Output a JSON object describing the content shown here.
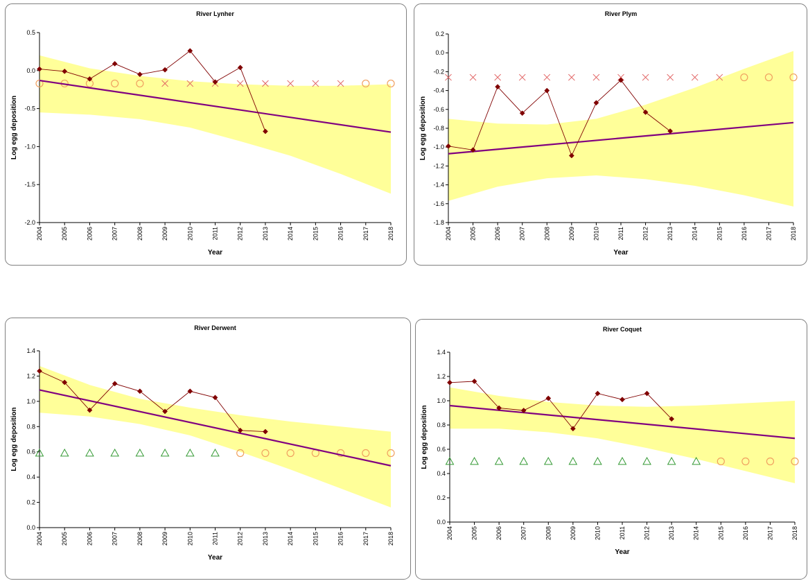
{
  "chart_data": [
    {
      "type": "line",
      "title": "River Lynher",
      "xlabel": "Year",
      "ylabel": "Log egg deposition",
      "x": [
        2004,
        2005,
        2006,
        2007,
        2008,
        2009,
        2010,
        2011,
        2012,
        2013,
        2014,
        2015,
        2016,
        2017,
        2018
      ],
      "xlim": [
        2004,
        2018
      ],
      "ylim": [
        -2.0,
        0.5
      ],
      "yticks": [
        -2.0,
        -1.5,
        -1.0,
        -0.5,
        0.0,
        0.5
      ],
      "ytick_labels": [
        "-2.0",
        "-1.5",
        "-1.0",
        "-0.5",
        "0.0",
        "0.5"
      ],
      "colors": {
        "observed": "#800000",
        "trend": "#800080",
        "band": "#ffff99",
        "x_marker": "#e06060",
        "circle_marker": "#f0a060",
        "triangle_marker": "#339933"
      },
      "observed": {
        "x": [
          2004,
          2005,
          2006,
          2007,
          2008,
          2009,
          2010,
          2011,
          2012,
          2013
        ],
        "y": [
          0.02,
          -0.01,
          -0.11,
          0.09,
          -0.05,
          0.01,
          0.26,
          -0.15,
          0.04,
          -0.8
        ]
      },
      "trend": {
        "x": [
          2004,
          2018
        ],
        "y": [
          -0.13,
          -0.81
        ]
      },
      "confidence_band": {
        "x": [
          2004,
          2006,
          2008,
          2010,
          2012,
          2014,
          2016,
          2018
        ],
        "upper": [
          0.2,
          0.03,
          -0.07,
          -0.14,
          -0.18,
          -0.2,
          -0.2,
          -0.18
        ],
        "lower": [
          -0.55,
          -0.58,
          -0.64,
          -0.75,
          -0.93,
          -1.12,
          -1.36,
          -1.62
        ]
      },
      "marker_series": [
        {
          "marker": "x",
          "x": [
            2009,
            2010,
            2011,
            2012,
            2013,
            2014,
            2015,
            2016
          ],
          "y": [
            -0.17,
            -0.17,
            -0.17,
            -0.17,
            -0.17,
            -0.17,
            -0.17,
            -0.17
          ]
        },
        {
          "marker": "circle",
          "x": [
            2004,
            2005,
            2006,
            2007,
            2008,
            2017,
            2018
          ],
          "y": [
            -0.17,
            -0.17,
            -0.17,
            -0.17,
            -0.17,
            -0.17,
            -0.17
          ]
        }
      ]
    },
    {
      "type": "line",
      "title": "River Plym",
      "xlabel": "Year",
      "ylabel": "Log egg deposition",
      "x": [
        2004,
        2005,
        2006,
        2007,
        2008,
        2009,
        2010,
        2011,
        2012,
        2013,
        2014,
        2015,
        2016,
        2017,
        2018
      ],
      "xlim": [
        2004,
        2018
      ],
      "ylim": [
        -1.8,
        0.2
      ],
      "yticks": [
        -1.8,
        -1.6,
        -1.4,
        -1.2,
        -1.0,
        -0.8,
        -0.6,
        -0.4,
        -0.2,
        0.0,
        0.2
      ],
      "ytick_labels": [
        "-1.8",
        "-1.6",
        "-1.4",
        "-1.2",
        "-1.0",
        "-0.8",
        "-0.6",
        "-0.4",
        "-0.2",
        "0.0",
        "0.2"
      ],
      "colors": {
        "observed": "#800000",
        "trend": "#800080",
        "band": "#ffff99",
        "x_marker": "#e06060",
        "circle_marker": "#f0a060",
        "triangle_marker": "#339933"
      },
      "observed": {
        "x": [
          2004,
          2005,
          2006,
          2007,
          2008,
          2009,
          2010,
          2011,
          2012,
          2013
        ],
        "y": [
          -0.99,
          -1.03,
          -0.36,
          -0.64,
          -0.4,
          -1.09,
          -0.53,
          -0.29,
          -0.63,
          -0.83
        ]
      },
      "trend": {
        "x": [
          2004,
          2018
        ],
        "y": [
          -1.07,
          -0.74
        ]
      },
      "confidence_band": {
        "x": [
          2004,
          2006,
          2008,
          2010,
          2012,
          2014,
          2016,
          2018
        ],
        "upper": [
          -0.7,
          -0.75,
          -0.76,
          -0.7,
          -0.55,
          -0.37,
          -0.17,
          0.02
        ],
        "lower": [
          -1.57,
          -1.42,
          -1.33,
          -1.3,
          -1.34,
          -1.41,
          -1.51,
          -1.63
        ]
      },
      "marker_series": [
        {
          "marker": "x",
          "x": [
            2004,
            2005,
            2006,
            2007,
            2008,
            2009,
            2010,
            2011,
            2012,
            2013,
            2014,
            2015
          ],
          "y": [
            -0.26,
            -0.26,
            -0.26,
            -0.26,
            -0.26,
            -0.26,
            -0.26,
            -0.26,
            -0.26,
            -0.26,
            -0.26,
            -0.26
          ]
        },
        {
          "marker": "circle",
          "x": [
            2016,
            2017,
            2018
          ],
          "y": [
            -0.26,
            -0.26,
            -0.26
          ]
        }
      ]
    },
    {
      "type": "line",
      "title": "River Derwent",
      "xlabel": "Year",
      "ylabel": "Log egg deposition",
      "x": [
        2004,
        2005,
        2006,
        2007,
        2008,
        2009,
        2010,
        2011,
        2012,
        2013,
        2014,
        2015,
        2016,
        2017,
        2018
      ],
      "xlim": [
        2004,
        2018
      ],
      "ylim": [
        0.0,
        1.4
      ],
      "yticks": [
        0.0,
        0.2,
        0.4,
        0.6,
        0.8,
        1.0,
        1.2,
        1.4
      ],
      "ytick_labels": [
        "0.0",
        "0.2",
        "0.4",
        "0.6",
        "0.8",
        "1.0",
        "1.2",
        "1.4"
      ],
      "colors": {
        "observed": "#800000",
        "trend": "#800080",
        "band": "#ffff99",
        "x_marker": "#e06060",
        "circle_marker": "#f0a060",
        "triangle_marker": "#339933"
      },
      "observed": {
        "x": [
          2004,
          2005,
          2006,
          2007,
          2008,
          2009,
          2010,
          2011,
          2012,
          2013
        ],
        "y": [
          1.24,
          1.15,
          0.93,
          1.14,
          1.08,
          0.92,
          1.08,
          1.03,
          0.77,
          0.76
        ]
      },
      "trend": {
        "x": [
          2004,
          2018
        ],
        "y": [
          1.09,
          0.49
        ]
      },
      "confidence_band": {
        "x": [
          2004,
          2006,
          2008,
          2010,
          2012,
          2014,
          2016,
          2018
        ],
        "upper": [
          1.28,
          1.13,
          1.02,
          0.95,
          0.89,
          0.84,
          0.8,
          0.76
        ],
        "lower": [
          0.91,
          0.88,
          0.82,
          0.73,
          0.6,
          0.46,
          0.31,
          0.16
        ]
      },
      "marker_series": [
        {
          "marker": "triangle",
          "x": [
            2004,
            2005,
            2006,
            2007,
            2008,
            2009,
            2010,
            2011
          ],
          "y": [
            0.59,
            0.59,
            0.59,
            0.59,
            0.59,
            0.59,
            0.59,
            0.59
          ]
        },
        {
          "marker": "circle",
          "x": [
            2012,
            2013,
            2014,
            2015,
            2016,
            2017,
            2018
          ],
          "y": [
            0.59,
            0.59,
            0.59,
            0.59,
            0.59,
            0.59,
            0.59
          ]
        }
      ]
    },
    {
      "type": "line",
      "title": "River Coquet",
      "xlabel": "Year",
      "ylabel": "Log egg deposition",
      "x": [
        2004,
        2005,
        2006,
        2007,
        2008,
        2009,
        2010,
        2011,
        2012,
        2013,
        2014,
        2015,
        2016,
        2017,
        2018
      ],
      "xlim": [
        2004,
        2018
      ],
      "ylim": [
        0.0,
        1.4
      ],
      "yticks": [
        0.0,
        0.2,
        0.4,
        0.6,
        0.8,
        1.0,
        1.2,
        1.4
      ],
      "ytick_labels": [
        "0.0",
        "0.2",
        "0.4",
        "0.6",
        "0.8",
        "1.0",
        "1.2",
        "1.4"
      ],
      "colors": {
        "observed": "#800000",
        "trend": "#800080",
        "band": "#ffff99",
        "x_marker": "#e06060",
        "circle_marker": "#f0a060",
        "triangle_marker": "#339933"
      },
      "observed": {
        "x": [
          2004,
          2005,
          2006,
          2007,
          2008,
          2009,
          2010,
          2011,
          2012,
          2013
        ],
        "y": [
          1.15,
          1.16,
          0.94,
          0.92,
          1.02,
          0.77,
          1.06,
          1.01,
          1.06,
          0.85
        ]
      },
      "trend": {
        "x": [
          2004,
          2018
        ],
        "y": [
          0.96,
          0.69
        ]
      },
      "confidence_band": {
        "x": [
          2004,
          2006,
          2008,
          2010,
          2012,
          2014,
          2016,
          2018
        ],
        "upper": [
          1.11,
          1.04,
          0.99,
          0.96,
          0.95,
          0.96,
          0.98,
          1.0
        ],
        "lower": [
          0.77,
          0.77,
          0.74,
          0.69,
          0.61,
          0.52,
          0.42,
          0.32
        ]
      },
      "marker_series": [
        {
          "marker": "triangle",
          "x": [
            2004,
            2005,
            2006,
            2007,
            2008,
            2009,
            2010,
            2011,
            2012,
            2013,
            2014
          ],
          "y": [
            0.5,
            0.5,
            0.5,
            0.5,
            0.5,
            0.5,
            0.5,
            0.5,
            0.5,
            0.5,
            0.5
          ]
        },
        {
          "marker": "circle",
          "x": [
            2015,
            2016,
            2017,
            2018
          ],
          "y": [
            0.5,
            0.5,
            0.5,
            0.5
          ]
        }
      ]
    }
  ]
}
